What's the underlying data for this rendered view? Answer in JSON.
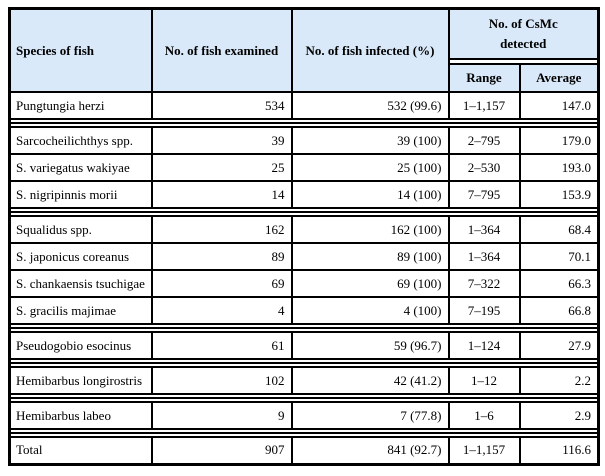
{
  "table": {
    "colors": {
      "header_bg": "#d9e9f9",
      "border": "#000000",
      "background": "#ffffff"
    },
    "header": {
      "species": "Species of fish",
      "examined": "No. of fish examined",
      "infected": "No. of fish infected (%)",
      "csmc": "No. of CsMc detected",
      "range": "Range",
      "average": "Average"
    },
    "rows": [
      {
        "species": "Pungtungia herzi",
        "examined": "534",
        "infected": "532 (99.6)",
        "range": "1–1,157",
        "average": "147.0",
        "separator_after": true
      },
      {
        "species": "Sarcocheilichthys spp.",
        "examined": "39",
        "infected": "39 (100)",
        "range": "2–795",
        "average": "179.0",
        "separator_after": false
      },
      {
        "species": "S. variegatus wakiyae",
        "examined": "25",
        "infected": "25 (100)",
        "range": "2–530",
        "average": "193.0",
        "separator_after": false
      },
      {
        "species": "S. nigripinnis morii",
        "examined": "14",
        "infected": "14 (100)",
        "range": "7–795",
        "average": "153.9",
        "separator_after": true
      },
      {
        "species": "Squalidus spp.",
        "examined": "162",
        "infected": "162 (100)",
        "range": "1–364",
        "average": "68.4",
        "separator_after": false
      },
      {
        "species": "S. japonicus coreanus",
        "examined": "89",
        "infected": "89 (100)",
        "range": "1–364",
        "average": "70.1",
        "separator_after": false
      },
      {
        "species": "S. chankaensis tsuchigae",
        "examined": "69",
        "infected": "69 (100)",
        "range": "7–322",
        "average": "66.3",
        "separator_after": false
      },
      {
        "species": "S. gracilis majimae",
        "examined": "4",
        "infected": "4 (100)",
        "range": "7–195",
        "average": "66.8",
        "separator_after": true
      },
      {
        "species": "Pseudogobio esocinus",
        "examined": "61",
        "infected": "59 (96.7)",
        "range": "1–124",
        "average": "27.9",
        "separator_after": true
      },
      {
        "species": "Hemibarbus longirostris",
        "examined": "102",
        "infected": "42 (41.2)",
        "range": "1–12",
        "average": "2.2",
        "separator_after": true
      },
      {
        "species": "Hemibarbus labeo",
        "examined": "9",
        "infected": "7 (77.8)",
        "range": "1–6",
        "average": "2.9",
        "separator_after": true
      },
      {
        "species": "Total",
        "examined": "907",
        "infected": "841 (92.7)",
        "range": "1–1,157",
        "average": "116.6",
        "separator_after": false
      }
    ]
  }
}
